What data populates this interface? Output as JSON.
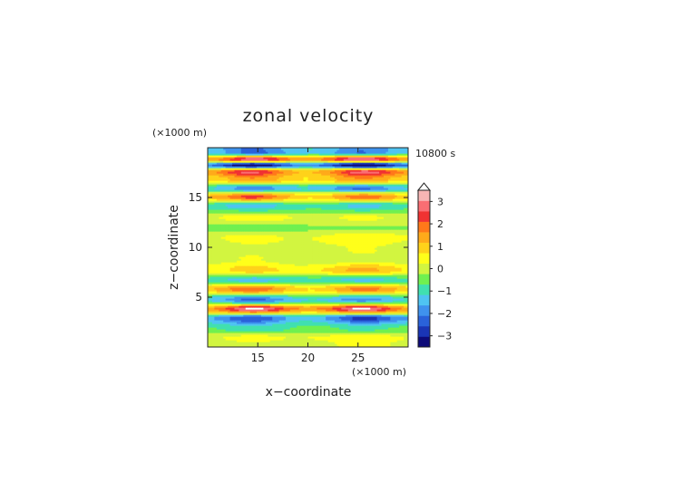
{
  "chart_data": {
    "type": "heatmap",
    "title": "zonal velocity",
    "xlabel": "x−coordinate",
    "ylabel": "z−coordinate",
    "x_unit": "(×1000 m)",
    "y_unit": "(×1000 m)",
    "time_label": "10800 s",
    "xlim": [
      10,
      30
    ],
    "ylim": [
      0,
      20
    ],
    "x_ticks": [
      15,
      20,
      25
    ],
    "y_ticks": [
      5,
      10,
      15
    ],
    "x_tick_labels": [
      "15",
      "20",
      "25"
    ],
    "y_tick_labels": [
      "5",
      "10",
      "15"
    ],
    "colorbar": {
      "levels": [
        -3.5,
        -3,
        -2.5,
        -2,
        -1.5,
        -1,
        -0.5,
        0,
        0.5,
        1,
        1.5,
        2,
        2.5,
        3,
        3.5
      ],
      "tick_values": [
        3,
        2,
        1,
        0,
        -1,
        -2,
        -3
      ],
      "tick_labels": [
        "3",
        "2",
        "1",
        "0",
        "−1",
        "−2",
        "−3"
      ],
      "colors": [
        "#0d0a78",
        "#1a35b5",
        "#2a62da",
        "#3f92ee",
        "#4fc4f2",
        "#40e0b0",
        "#70f050",
        "#d2f540",
        "#ffff1a",
        "#ffd21a",
        "#ffaa1a",
        "#ff781a",
        "#f03232",
        "#fa6e73",
        "#f7b5b4"
      ],
      "over_color": "#ffffff"
    },
    "bands": [
      {
        "z": 0.4,
        "left": 0.4,
        "right": 0.6
      },
      {
        "z": 1.0,
        "left": 0.7,
        "right": 0.9
      },
      {
        "z": 1.9,
        "left": -1.0,
        "right": -0.8
      },
      {
        "z": 2.9,
        "left": -2.4,
        "right": -2.6
      },
      {
        "z": 3.9,
        "left": 3.3,
        "right": 3.3
      },
      {
        "z": 4.8,
        "left": -2.6,
        "right": -2.2
      },
      {
        "z": 5.8,
        "left": 2.4,
        "right": 2.2
      },
      {
        "z": 6.8,
        "left": -1.2,
        "right": -1.1
      },
      {
        "z": 7.8,
        "left": 1.6,
        "right": 2.1
      },
      {
        "z": 8.8,
        "left": 0.5,
        "right": 0.3
      },
      {
        "z": 9.9,
        "left": 0.3,
        "right": 0.5
      },
      {
        "z": 11.0,
        "left": 0.9,
        "right": 1.2
      },
      {
        "z": 12.0,
        "left": -0.3,
        "right": -0.1
      },
      {
        "z": 13.1,
        "left": 0.8,
        "right": 0.6
      },
      {
        "z": 14.2,
        "left": -1.6,
        "right": -1.4
      },
      {
        "z": 15.1,
        "left": 2.4,
        "right": 2.1
      },
      {
        "z": 16.0,
        "left": -1.8,
        "right": -2.0
      },
      {
        "z": 16.9,
        "left": 2.4,
        "right": 2.5
      },
      {
        "z": 17.6,
        "left": 3.3,
        "right": 3.5
      },
      {
        "z": 18.3,
        "left": -3.1,
        "right": -3.3
      },
      {
        "z": 18.9,
        "left": 3.2,
        "right": 3.4
      },
      {
        "z": 19.6,
        "left": -2.6,
        "right": -2.4
      }
    ]
  }
}
